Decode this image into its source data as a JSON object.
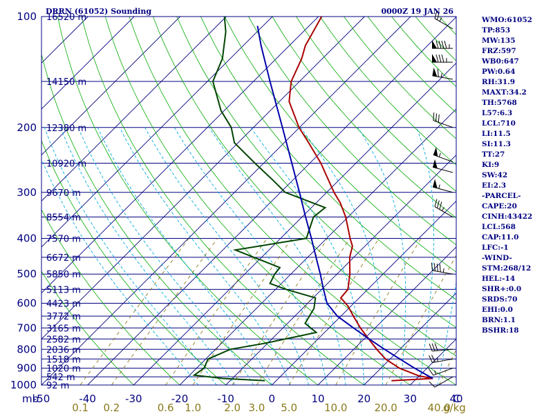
{
  "colors": {
    "background": "#ffffff",
    "isobar": "#000080",
    "isotherm": "#000080",
    "dry_adiabat": "#00aa00",
    "moist_adiabat": "#00aadd",
    "mixing_ratio": "#8a7a1a",
    "temperature_trace": "#aa0000",
    "dewpoint_trace": "#004400",
    "parcel_trace": "#0000aa",
    "labels": "#000080",
    "wind_barb": "#000000"
  },
  "chart_data": {
    "type": "skew-t log-p",
    "title": "DRRN (61052) Sounding",
    "valid_time": "0000Z 19 JAN 26",
    "ylabel": "mb",
    "y_scale": "log",
    "xlabel": "C",
    "xlim": [
      -50,
      40
    ],
    "ylim": [
      1000,
      100
    ],
    "grid": true,
    "pressure_ticks": [
      "100",
      "200",
      "300",
      "400",
      "500",
      "600",
      "700",
      "800",
      "900",
      "1000"
    ],
    "temperature_ticks": [
      "-50",
      "-40",
      "-30",
      "-20",
      "-10",
      "0",
      "10",
      "20",
      "30",
      "40"
    ],
    "mixing_ratio_label": "g/kg",
    "mixing_ratio_ticks": [
      "0.1",
      "0.2",
      "0.6",
      "1.0",
      "2.0",
      "3.0",
      "5.0",
      "10.0",
      "20.0",
      "40.0"
    ],
    "height_labels": [
      {
        "p": 100,
        "text": "16520 m"
      },
      {
        "p": 150,
        "text": "14150 m"
      },
      {
        "p": 200,
        "text": "12380 m"
      },
      {
        "p": 250,
        "text": "10920 m"
      },
      {
        "p": 300,
        "text": "9670 m"
      },
      {
        "p": 350,
        "text": "8554 m"
      },
      {
        "p": 400,
        "text": "7570 m"
      },
      {
        "p": 450,
        "text": "6672 m"
      },
      {
        "p": 500,
        "text": "5850 m"
      },
      {
        "p": 550,
        "text": "5113 m"
      },
      {
        "p": 600,
        "text": "4423 m"
      },
      {
        "p": 650,
        "text": "3772 m"
      },
      {
        "p": 700,
        "text": "3165 m"
      },
      {
        "p": 750,
        "text": "2582 m"
      },
      {
        "p": 800,
        "text": "2036 m"
      },
      {
        "p": 850,
        "text": "1518 m"
      },
      {
        "p": 900,
        "text": "1020 m"
      },
      {
        "p": 950,
        "text": "542 m"
      },
      {
        "p": 1000,
        "text": "92 m"
      }
    ],
    "series": [
      {
        "kind": "temperature",
        "points": [
          [
            973,
            25
          ],
          [
            960,
            33.5
          ],
          [
            945,
            30
          ],
          [
            900,
            24
          ],
          [
            850,
            19
          ],
          [
            800,
            15
          ],
          [
            750,
            11
          ],
          [
            700,
            6.8
          ],
          [
            650,
            2.7
          ],
          [
            610,
            -0.7
          ],
          [
            580,
            -4
          ],
          [
            550,
            -4.3
          ],
          [
            500,
            -7.2
          ],
          [
            450,
            -10.9
          ],
          [
            420,
            -12.7
          ],
          [
            400,
            -14.9
          ],
          [
            350,
            -20.5
          ],
          [
            320,
            -24.8
          ],
          [
            300,
            -28.4
          ],
          [
            250,
            -37.6
          ],
          [
            220,
            -44.7
          ],
          [
            200,
            -50.1
          ],
          [
            170,
            -57.9
          ],
          [
            150,
            -61.8
          ],
          [
            130,
            -64.5
          ],
          [
            120,
            -66.5
          ],
          [
            100,
            -69.3
          ]
        ]
      },
      {
        "kind": "dewpoint",
        "points": [
          [
            973,
            -2.5
          ],
          [
            960,
            -12
          ],
          [
            940,
            -19
          ],
          [
            900,
            -18.4
          ],
          [
            850,
            -19.5
          ],
          [
            800,
            -16.8
          ],
          [
            770,
            -10.5
          ],
          [
            720,
            -1.8
          ],
          [
            680,
            -6.2
          ],
          [
            620,
            -7.5
          ],
          [
            580,
            -9.5
          ],
          [
            550,
            -17.7
          ],
          [
            530,
            -22.5
          ],
          [
            500,
            -23.5
          ],
          [
            480,
            -23.8
          ],
          [
            430,
            -37.3
          ],
          [
            400,
            -24.4
          ],
          [
            350,
            -27.5
          ],
          [
            330,
            -27
          ],
          [
            300,
            -39
          ],
          [
            280,
            -43.8
          ],
          [
            250,
            -51.9
          ],
          [
            220,
            -60.8
          ],
          [
            200,
            -64.8
          ],
          [
            180,
            -70.7
          ],
          [
            150,
            -78.8
          ],
          [
            130,
            -81.7
          ],
          [
            110,
            -86.8
          ],
          [
            100,
            -90.4
          ]
        ]
      },
      {
        "kind": "parcel",
        "points": [
          [
            960,
            33.5
          ],
          [
            900,
            27.3
          ],
          [
            850,
            22.1
          ],
          [
            800,
            16.7
          ],
          [
            750,
            11.1
          ],
          [
            700,
            5.3
          ],
          [
            650,
            -0.8
          ],
          [
            600,
            -5.8
          ],
          [
            550,
            -9.6
          ],
          [
            500,
            -13.6
          ],
          [
            450,
            -18.2
          ],
          [
            400,
            -23.3
          ],
          [
            350,
            -29.2
          ],
          [
            300,
            -35.9
          ],
          [
            250,
            -43.9
          ],
          [
            200,
            -53.7
          ],
          [
            150,
            -66.4
          ],
          [
            120,
            -76.1
          ],
          [
            106,
            -81.2
          ]
        ]
      }
    ],
    "wind_barbs": [
      {
        "p": 108,
        "dir": 300,
        "speed": 25
      },
      {
        "p": 122,
        "dir": 270,
        "speed": 95
      },
      {
        "p": 133,
        "dir": 270,
        "speed": 85
      },
      {
        "p": 148,
        "dir": 280,
        "speed": 65
      },
      {
        "p": 200,
        "dir": 290,
        "speed": 30
      },
      {
        "p": 248,
        "dir": 290,
        "speed": 55
      },
      {
        "p": 265,
        "dir": 285,
        "speed": 50
      },
      {
        "p": 300,
        "dir": 285,
        "speed": 55
      },
      {
        "p": 350,
        "dir": 300,
        "speed": 35
      },
      {
        "p": 500,
        "dir": 280,
        "speed": 45
      },
      {
        "p": 800,
        "dir": 265,
        "speed": 30
      },
      {
        "p": 850,
        "dir": 260,
        "speed": 25
      },
      {
        "p": 900,
        "dir": 250,
        "speed": 15
      },
      {
        "p": 950,
        "dir": 240,
        "speed": 10
      }
    ]
  },
  "indices": [
    "WMO:61052",
    "TP:853",
    "MW:135",
    "FRZ:597",
    "WB0:647",
    "PW:0.64",
    "RH:31.9",
    "MAXT:34.2",
    "TH:5768",
    "L57:6.3",
    "LCL:710",
    "LI:11.5",
    "SI:11.3",
    "TT:27",
    "KI:9",
    "SW:42",
    "EI:2.3",
    "-PARCEL-",
    "CAPE:20",
    "CINH:43422",
    "LCL:568",
    "CAP:11.0",
    "LFC:-1",
    "-WIND-",
    "STM:268/12",
    "HEL:-14",
    "SHR+:0.0",
    "SRDS:70",
    "EHI:0.0",
    "BRN:1.1",
    "BSHR:18"
  ]
}
